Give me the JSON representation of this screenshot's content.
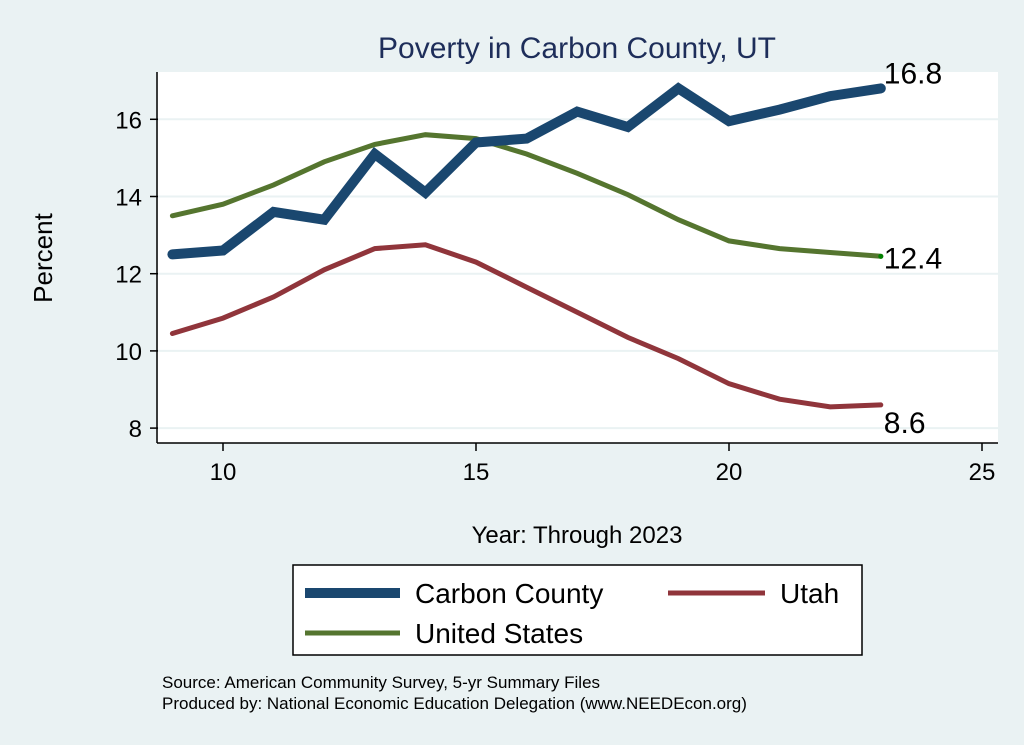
{
  "chart_data": {
    "type": "line",
    "title": "Poverty in Carbon County, UT",
    "xlabel": "Year: Through 2023",
    "ylabel": "Percent",
    "xlim": [
      8.7,
      25.3
    ],
    "ylim": [
      7.6,
      17.4
    ],
    "xticks": [
      10,
      15,
      20,
      25
    ],
    "yticks": [
      8,
      10,
      12,
      14,
      16
    ],
    "grid": true,
    "legend_placement": "bottom",
    "x": [
      9,
      10,
      11,
      12,
      13,
      14,
      15,
      16,
      17,
      18,
      19,
      20,
      21,
      22,
      23
    ],
    "series": [
      {
        "name": "Carbon County",
        "color": "#1a476f",
        "end_label": "16.8",
        "values": [
          12.5,
          12.6,
          13.6,
          13.4,
          15.1,
          14.1,
          15.4,
          15.5,
          16.2,
          15.8,
          16.8,
          15.95,
          16.25,
          16.6,
          16.8
        ]
      },
      {
        "name": "Utah",
        "color": "#90353b",
        "end_label": "8.6",
        "values": [
          10.45,
          10.85,
          11.4,
          12.1,
          12.65,
          12.75,
          12.3,
          11.65,
          11.0,
          10.35,
          9.8,
          9.15,
          8.75,
          8.55,
          8.6
        ]
      },
      {
        "name": "United States",
        "color": "#55752f",
        "end_label": "12.4",
        "values": [
          13.5,
          13.8,
          14.3,
          14.9,
          15.35,
          15.6,
          15.5,
          15.1,
          14.6,
          14.05,
          13.4,
          12.85,
          12.65,
          12.55,
          12.45
        ]
      }
    ]
  },
  "notes": {
    "source": "Source: American Community Survey, 5-yr Summary Files",
    "produced": "Produced by: National Economic Education Delegation (www.NEEDEcon.org)"
  }
}
